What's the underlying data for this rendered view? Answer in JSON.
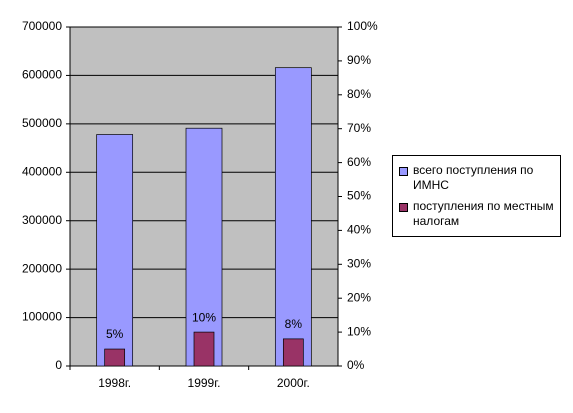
{
  "chart_data": {
    "type": "bar",
    "categories": [
      "1998г.",
      "1999г.",
      "2000г."
    ],
    "series": [
      {
        "name": "всего поступления по ИМНС",
        "color": "#9999ff",
        "values": [
          478000,
          491000,
          616000
        ]
      },
      {
        "name": "поступления по местным налогам",
        "color": "#993366",
        "axis": "y2",
        "values": [
          5,
          10,
          8
        ],
        "value_labels": [
          "5%",
          "10%",
          "8%"
        ]
      }
    ],
    "ylim": [
      0,
      700000
    ],
    "yticks": [
      0,
      100000,
      200000,
      300000,
      400000,
      500000,
      600000,
      700000
    ],
    "y2lim": [
      0,
      100
    ],
    "y2ticks": [
      {
        "value": 0,
        "label": "0%"
      },
      {
        "value": 10,
        "label": "10%"
      },
      {
        "value": 20,
        "label": "20%"
      },
      {
        "value": 30,
        "label": "30%"
      },
      {
        "value": 40,
        "label": "40%"
      },
      {
        "value": 50,
        "label": "50%"
      },
      {
        "value": 60,
        "label": "60%"
      },
      {
        "value": 70,
        "label": "70%"
      },
      {
        "value": 80,
        "label": "80%"
      },
      {
        "value": 90,
        "label": "90%"
      },
      {
        "value": 100,
        "label": "100%"
      }
    ],
    "grid": true,
    "legend": "right"
  }
}
